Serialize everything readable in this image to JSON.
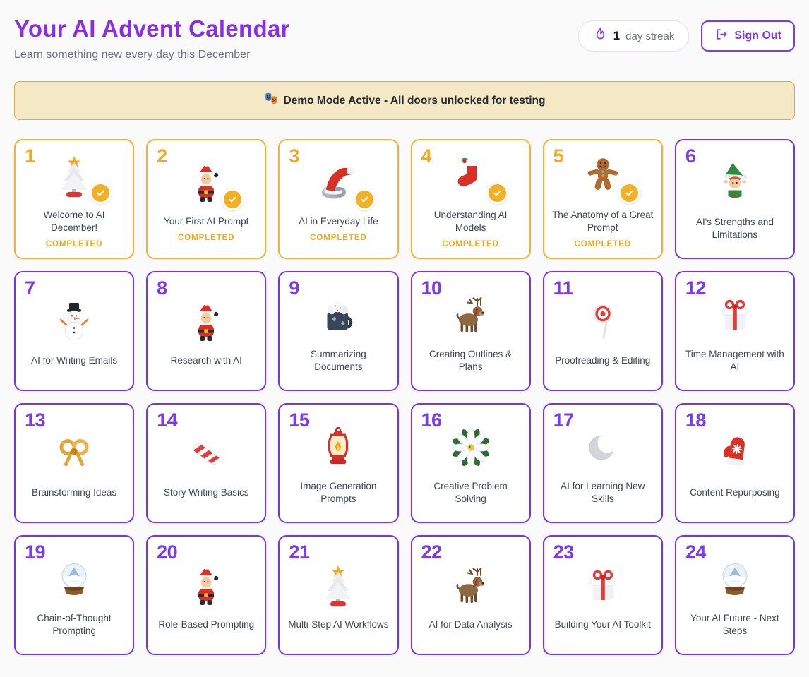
{
  "header": {
    "title": "Your AI Advent Calendar",
    "subtitle": "Learn something new every day this December",
    "streak": {
      "icon": "flame-icon",
      "count": "1",
      "label": "day streak"
    },
    "sign_out": {
      "icon": "logout-icon",
      "label": "Sign Out"
    }
  },
  "banner": {
    "icon": "theater-masks-icon",
    "text": "Demo Mode Active - All doors unlocked for testing"
  },
  "colors": {
    "title_purple": "#8b2de4",
    "accent_purple": "#7c3aed",
    "completed_yellow": "#f2b237",
    "completed_text": "#f0a71e",
    "banner_bg": "#f5e8c5",
    "banner_border": "#d9a94c",
    "page_bg": "#fafafa"
  },
  "completed_badge_icon": "check-icon",
  "doors": [
    {
      "number": "1",
      "title": "Welcome to AI December!",
      "icon": "christmas-tree-icon",
      "status": "COMPLETED"
    },
    {
      "number": "2",
      "title": "Your First AI Prompt",
      "icon": "santa-icon",
      "status": "COMPLETED"
    },
    {
      "number": "3",
      "title": "AI in Everyday Life",
      "icon": "santa-hat-icon",
      "status": "COMPLETED"
    },
    {
      "number": "4",
      "title": "Understanding AI Models",
      "icon": "stocking-icon",
      "status": "COMPLETED"
    },
    {
      "number": "5",
      "title": "The Anatomy of a Great Prompt",
      "icon": "gingerbread-icon",
      "status": "COMPLETED"
    },
    {
      "number": "6",
      "title": "AI's Strengths and Limitations",
      "icon": "elf-icon",
      "status": null
    },
    {
      "number": "7",
      "title": "AI for Writing Emails",
      "icon": "snowman-icon",
      "status": null
    },
    {
      "number": "8",
      "title": "Research with AI",
      "icon": "santa-icon",
      "status": null
    },
    {
      "number": "9",
      "title": "Summarizing Documents",
      "icon": "cocoa-icon",
      "status": null
    },
    {
      "number": "10",
      "title": "Creating Outlines & Plans",
      "icon": "reindeer-icon",
      "status": null
    },
    {
      "number": "11",
      "title": "Proofreading & Editing",
      "icon": "lollipop-icon",
      "status": null
    },
    {
      "number": "12",
      "title": "Time Management with AI",
      "icon": "gift-icon",
      "status": null
    },
    {
      "number": "13",
      "title": "Brainstorming Ideas",
      "icon": "gold-bow-icon",
      "status": null
    },
    {
      "number": "14",
      "title": "Story Writing Basics",
      "icon": "candy-stick-icon",
      "status": null
    },
    {
      "number": "15",
      "title": "Image Generation Prompts",
      "icon": "lantern-icon",
      "status": null
    },
    {
      "number": "16",
      "title": "Creative Problem Solving",
      "icon": "poinsettia-icon",
      "status": null
    },
    {
      "number": "17",
      "title": "AI for Learning New Skills",
      "icon": "moon-icon",
      "status": null
    },
    {
      "number": "18",
      "title": "Content Repurposing",
      "icon": "mitten-icon",
      "status": null
    },
    {
      "number": "19",
      "title": "Chain-of-Thought Prompting",
      "icon": "snow-globe-icon",
      "status": null
    },
    {
      "number": "20",
      "title": "Role-Based Prompting",
      "icon": "santa-icon",
      "status": null
    },
    {
      "number": "21",
      "title": "Multi-Step AI Workflows",
      "icon": "christmas-tree-icon",
      "status": null
    },
    {
      "number": "22",
      "title": "AI for Data Analysis",
      "icon": "reindeer-icon",
      "status": null
    },
    {
      "number": "23",
      "title": "Building Your AI Toolkit",
      "icon": "gift-icon",
      "status": null
    },
    {
      "number": "24",
      "title": "Your AI Future - Next Steps",
      "icon": "snow-globe-icon",
      "status": null
    }
  ]
}
